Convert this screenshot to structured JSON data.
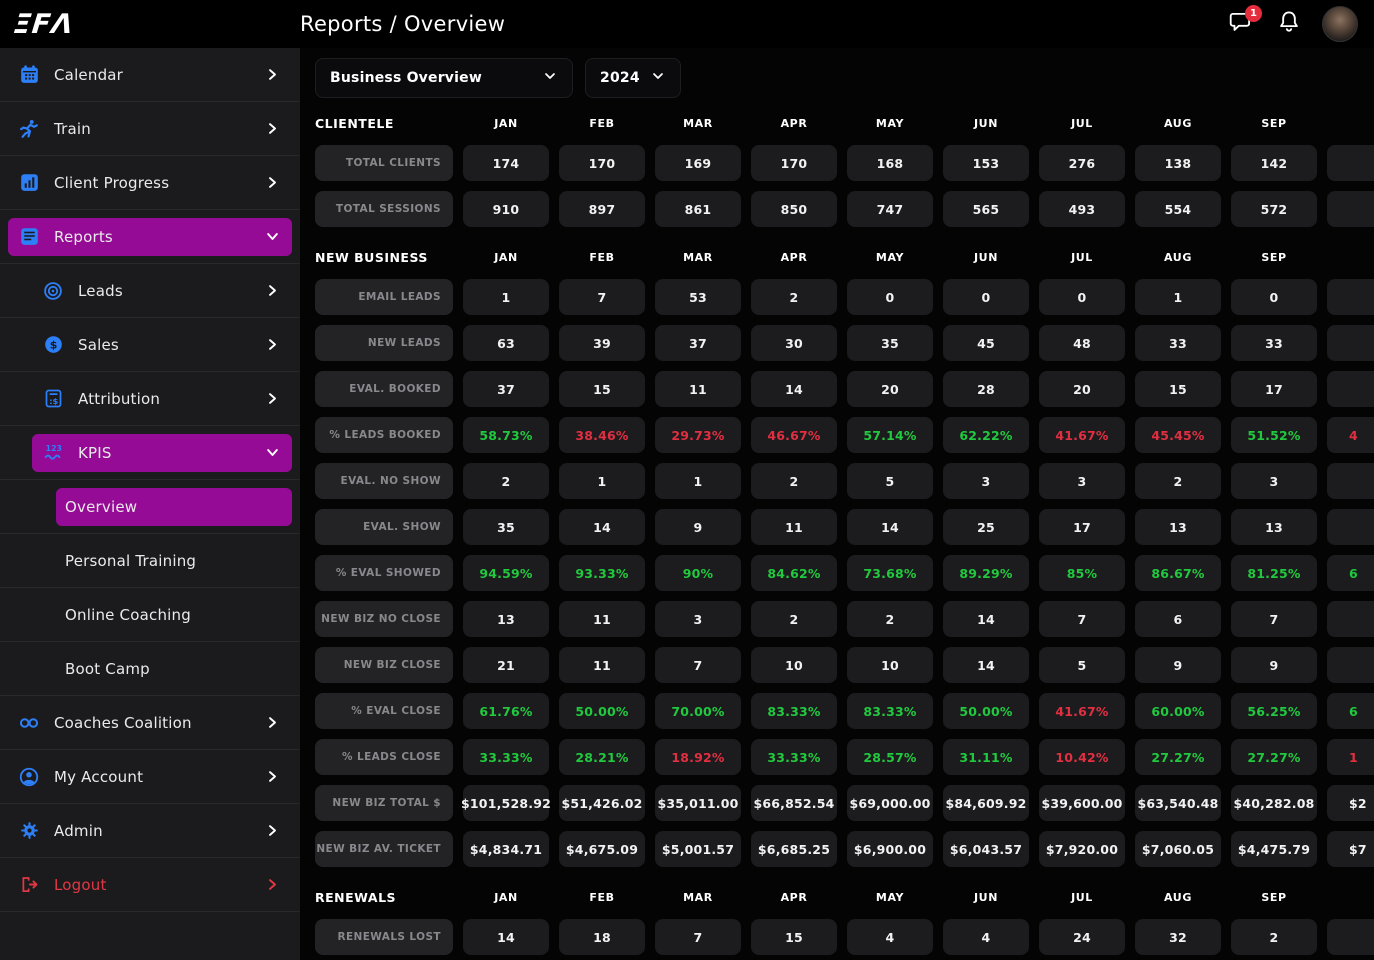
{
  "header": {
    "logo_text": "EFA",
    "logo_display": "ΞFΛ",
    "title": "Reports / Overview",
    "notification_count": "1"
  },
  "filters": {
    "report_select": "Business Overview",
    "year_select": "2024"
  },
  "colors": {
    "accent_purple": "#960b96",
    "positive_green": "#21c93e",
    "negative_red": "#e12f42",
    "icon_blue": "#2d7ff7",
    "logout_red": "#e23744"
  },
  "sidebar": {
    "items": [
      {
        "label": "Calendar",
        "icon": "calendar-icon",
        "chevron": "right",
        "level": 0
      },
      {
        "label": "Train",
        "icon": "runner-icon",
        "chevron": "right",
        "level": 0
      },
      {
        "label": "Client Progress",
        "icon": "client-progress-icon",
        "chevron": "right",
        "level": 0
      },
      {
        "label": "Reports",
        "icon": "reports-icon",
        "chevron": "down",
        "level": 0,
        "active": true
      },
      {
        "label": "Leads",
        "icon": "leads-icon",
        "chevron": "right",
        "level": 1
      },
      {
        "label": "Sales",
        "icon": "sales-icon",
        "chevron": "right",
        "level": 1
      },
      {
        "label": "Attribution",
        "icon": "attribution-icon",
        "chevron": "right",
        "level": 1
      },
      {
        "label": "KPIS",
        "icon": "kpis-icon",
        "chevron": "down",
        "level": 1,
        "active": true
      },
      {
        "label": "Overview",
        "level": 2,
        "active": true
      },
      {
        "label": "Personal Training",
        "level": 2
      },
      {
        "label": "Online Coaching",
        "level": 2
      },
      {
        "label": "Boot Camp",
        "level": 2
      },
      {
        "label": "Coaches Coalition",
        "icon": "infinity-icon",
        "chevron": "right",
        "level": 0
      },
      {
        "label": "My Account",
        "icon": "account-icon",
        "chevron": "right",
        "level": 0
      },
      {
        "label": "Admin",
        "icon": "gear-icon",
        "chevron": "right",
        "level": 0
      },
      {
        "label": "Logout",
        "icon": "logout-icon",
        "chevron": "right",
        "level": 0,
        "danger": true
      }
    ]
  },
  "table": {
    "months": [
      "JAN",
      "FEB",
      "MAR",
      "APR",
      "MAY",
      "JUN",
      "JUL",
      "AUG",
      "SEP"
    ],
    "sections": [
      {
        "title": "CLIENTELE",
        "rows": [
          {
            "label": "TOTAL CLIENTS",
            "values": [
              "174",
              "170",
              "169",
              "170",
              "168",
              "153",
              "276",
              "138",
              "142"
            ],
            "partial": {
              "text": "",
              "color": "w"
            }
          },
          {
            "label": "TOTAL SESSIONS",
            "values": [
              "910",
              "897",
              "861",
              "850",
              "747",
              "565",
              "493",
              "554",
              "572"
            ],
            "partial": {
              "text": "",
              "color": "w"
            }
          }
        ]
      },
      {
        "title": "NEW BUSINESS",
        "rows": [
          {
            "label": "EMAIL LEADS",
            "values": [
              "1",
              "7",
              "53",
              "2",
              "0",
              "0",
              "0",
              "1",
              "0"
            ],
            "partial": {
              "text": "",
              "color": "w"
            }
          },
          {
            "label": "NEW LEADS",
            "values": [
              "63",
              "39",
              "37",
              "30",
              "35",
              "45",
              "48",
              "33",
              "33"
            ],
            "partial": {
              "text": "",
              "color": "w"
            }
          },
          {
            "label": "EVAL. BOOKED",
            "values": [
              "37",
              "15",
              "11",
              "14",
              "20",
              "28",
              "20",
              "15",
              "17"
            ],
            "partial": {
              "text": "",
              "color": "w"
            }
          },
          {
            "label": "% LEADS BOOKED",
            "values": [
              "58.73%",
              "38.46%",
              "29.73%",
              "46.67%",
              "57.14%",
              "62.22%",
              "41.67%",
              "45.45%",
              "51.52%"
            ],
            "value_colors": [
              "g",
              "r",
              "r",
              "r",
              "g",
              "g",
              "r",
              "r",
              "g"
            ],
            "partial": {
              "text": "4",
              "color": "r"
            }
          },
          {
            "label": "EVAL. NO SHOW",
            "values": [
              "2",
              "1",
              "1",
              "2",
              "5",
              "3",
              "3",
              "2",
              "3"
            ],
            "partial": {
              "text": "",
              "color": "w"
            }
          },
          {
            "label": "EVAL. SHOW",
            "values": [
              "35",
              "14",
              "9",
              "11",
              "14",
              "25",
              "17",
              "13",
              "13"
            ],
            "partial": {
              "text": "",
              "color": "w"
            }
          },
          {
            "label": "% EVAL SHOWED",
            "values": [
              "94.59%",
              "93.33%",
              "90%",
              "84.62%",
              "73.68%",
              "89.29%",
              "85%",
              "86.67%",
              "81.25%"
            ],
            "value_colors": [
              "g",
              "g",
              "g",
              "g",
              "g",
              "g",
              "g",
              "g",
              "g"
            ],
            "partial": {
              "text": "6",
              "color": "g"
            }
          },
          {
            "label": "NEW BIZ NO CLOSE",
            "values": [
              "13",
              "11",
              "3",
              "2",
              "2",
              "14",
              "7",
              "6",
              "7"
            ],
            "partial": {
              "text": "",
              "color": "w"
            }
          },
          {
            "label": "NEW BIZ CLOSE",
            "values": [
              "21",
              "11",
              "7",
              "10",
              "10",
              "14",
              "5",
              "9",
              "9"
            ],
            "partial": {
              "text": "",
              "color": "w"
            }
          },
          {
            "label": "% EVAL CLOSE",
            "values": [
              "61.76%",
              "50.00%",
              "70.00%",
              "83.33%",
              "83.33%",
              "50.00%",
              "41.67%",
              "60.00%",
              "56.25%"
            ],
            "value_colors": [
              "g",
              "g",
              "g",
              "g",
              "g",
              "g",
              "r",
              "g",
              "g"
            ],
            "partial": {
              "text": "6",
              "color": "g"
            }
          },
          {
            "label": "% LEADS CLOSE",
            "values": [
              "33.33%",
              "28.21%",
              "18.92%",
              "33.33%",
              "28.57%",
              "31.11%",
              "10.42%",
              "27.27%",
              "27.27%"
            ],
            "value_colors": [
              "g",
              "g",
              "r",
              "g",
              "g",
              "g",
              "r",
              "g",
              "g"
            ],
            "partial": {
              "text": "1",
              "color": "r"
            }
          },
          {
            "label": "NEW BIZ TOTAL $",
            "values": [
              "$101,528.92",
              "$51,426.02",
              "$35,011.00",
              "$66,852.54",
              "$69,000.00",
              "$84,609.92",
              "$39,600.00",
              "$63,540.48",
              "$40,282.08"
            ],
            "partial": {
              "text": "$2",
              "color": "w"
            }
          },
          {
            "label": "NEW BIZ AV. TICKET",
            "values": [
              "$4,834.71",
              "$4,675.09",
              "$5,001.57",
              "$6,685.25",
              "$6,900.00",
              "$6,043.57",
              "$7,920.00",
              "$7,060.05",
              "$4,475.79"
            ],
            "partial": {
              "text": "$7",
              "color": "w"
            }
          }
        ]
      },
      {
        "title": "RENEWALS",
        "rows": [
          {
            "label": "RENEWALS LOST",
            "values": [
              "14",
              "18",
              "7",
              "15",
              "4",
              "4",
              "24",
              "32",
              "2"
            ],
            "partial": {
              "text": "",
              "color": "w"
            }
          }
        ]
      }
    ]
  }
}
